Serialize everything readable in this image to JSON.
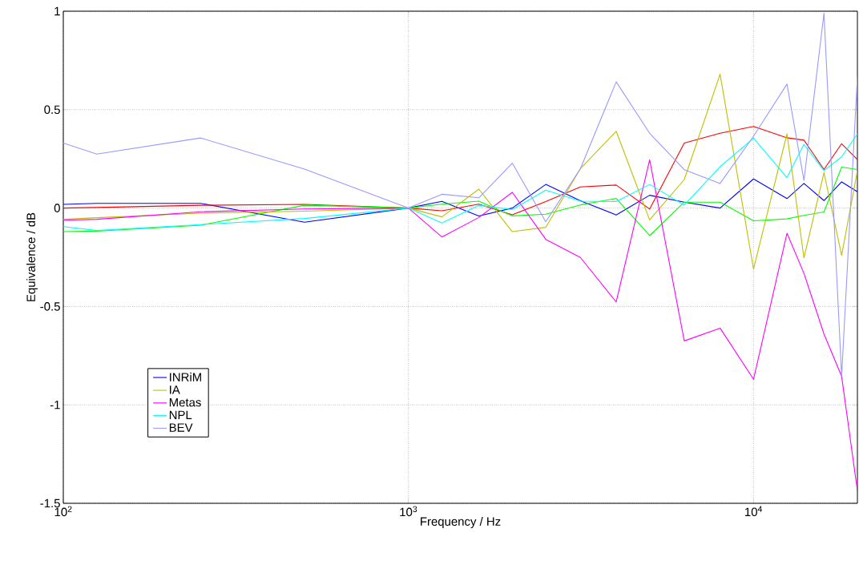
{
  "chart_data": {
    "type": "line",
    "xlabel": "Frequency / Hz",
    "ylabel": "Equivalence / dB",
    "log": "x",
    "grid": true,
    "legend": "bottom left",
    "xlim": [
      100,
      20000
    ],
    "ylim": [
      -1.5,
      1
    ],
    "xticks": [
      {
        "value": 100,
        "label": "10$^{2}$"
      },
      {
        "value": 1000,
        "label": "10$^{3}$"
      },
      {
        "value": 10000,
        "label": "10$^{4}$"
      }
    ],
    "yticks": [
      -1.5,
      -1,
      -0.5,
      0,
      0.5,
      1
    ],
    "x": [
      100,
      125,
      250,
      500,
      1000,
      1250,
      1600,
      2000,
      2500,
      3150,
      4000,
      5000,
      6300,
      8000,
      10000,
      12500,
      14000,
      16000,
      18000,
      20000
    ],
    "series": [
      {
        "name": "INRiM",
        "color": "#0000ff",
        "values": [
          0.019,
          0.024,
          0.024,
          -0.072,
          0,
          0.034,
          -0.04,
          0,
          0.12,
          0.037,
          -0.035,
          0.065,
          0.03,
          0,
          0.148,
          0.048,
          0.125,
          0.038,
          0.133,
          0.083
        ]
      },
      {
        "color": "#ff0000",
        "values": [
          0,
          0.003,
          0.014,
          0.019,
          0,
          -0.014,
          0.02,
          -0.034,
          0.033,
          0.107,
          0.117,
          -0.005,
          0.33,
          0.38,
          0.415,
          0.357,
          0.345,
          0.196,
          0.327,
          0.246
        ]
      },
      {
        "color": "#00ff00",
        "values": [
          -0.12,
          -0.117,
          -0.087,
          0.014,
          0,
          0.02,
          0.035,
          -0.04,
          -0.031,
          0.016,
          0.049,
          -0.14,
          0.03,
          0.03,
          -0.065,
          -0.055,
          -0.037,
          -0.02,
          0.208,
          0.196
        ]
      },
      {
        "name": "IA",
        "color": "#bfbf00",
        "values": [
          -0.057,
          -0.049,
          -0.026,
          -0.016,
          0,
          -0.045,
          0.096,
          -0.12,
          -0.098,
          0.2,
          0.39,
          -0.06,
          0.145,
          0.68,
          -0.31,
          0.377,
          -0.254,
          0.18,
          -0.24,
          0.19
        ]
      },
      {
        "name": "Metas",
        "color": "#ff00ff",
        "values": [
          -0.062,
          -0.057,
          -0.019,
          -0.005,
          0,
          -0.147,
          -0.048,
          0.08,
          -0.159,
          -0.251,
          -0.477,
          0.245,
          -0.675,
          -0.61,
          -0.87,
          -0.128,
          -0.332,
          -0.64,
          -0.855,
          -1.437
        ]
      },
      {
        "name": "NPL",
        "color": "#00ffff",
        "values": [
          -0.094,
          -0.114,
          -0.084,
          -0.053,
          0,
          -0.076,
          0.014,
          -0.008,
          0.091,
          0.035,
          0.033,
          0.12,
          0.015,
          0.21,
          0.355,
          0.155,
          0.324,
          0.19,
          0.26,
          0.377
        ]
      },
      {
        "name": "BEV",
        "color": "#9999ff",
        "values": [
          0.33,
          0.274,
          0.356,
          0.198,
          0,
          0.07,
          0.052,
          0.228,
          -0.07,
          0.2,
          0.641,
          0.38,
          0.195,
          0.125,
          0.365,
          0.63,
          0.14,
          0.99,
          -0.855,
          0.67
        ]
      }
    ]
  }
}
